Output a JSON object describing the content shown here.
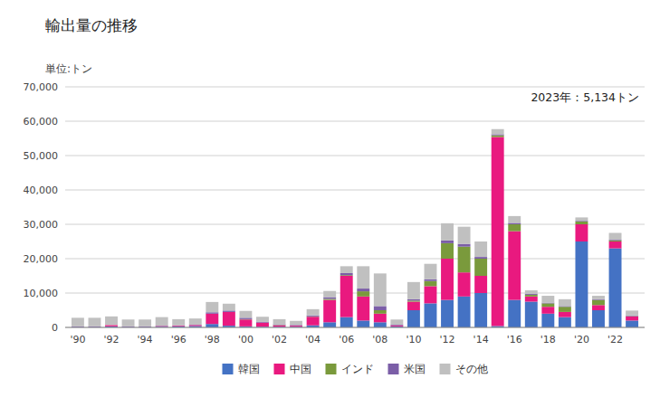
{
  "chart_data": {
    "type": "bar",
    "stacked": true,
    "title": "輸出量の推移",
    "ylabel": "単位:トン",
    "annotation": "2023年：5,134トン",
    "categories": [
      "'90",
      null,
      "'92",
      null,
      "'94",
      null,
      "'96",
      null,
      "'98",
      null,
      "'00",
      null,
      "'02",
      null,
      "'04",
      null,
      "'06",
      null,
      "'08",
      null,
      "'10",
      null,
      "'12",
      null,
      "'14",
      null,
      "'16",
      null,
      "'18",
      null,
      "'20",
      null,
      "'22",
      null
    ],
    "series": [
      {
        "name": "韓国",
        "color": "#4472c4",
        "values": [
          200,
          200,
          300,
          200,
          200,
          200,
          300,
          400,
          1000,
          500,
          300,
          200,
          200,
          200,
          600,
          1500,
          3000,
          2000,
          1500,
          300,
          5000,
          7000,
          8000,
          9000,
          10000,
          400,
          8000,
          7500,
          4000,
          3000,
          25000,
          5000,
          23000,
          2000
        ]
      },
      {
        "name": "中国",
        "color": "#e9197f",
        "values": [
          100,
          100,
          400,
          100,
          100,
          200,
          200,
          300,
          3000,
          4000,
          2000,
          1200,
          400,
          300,
          2500,
          6500,
          12000,
          7000,
          2500,
          300,
          2500,
          5000,
          12000,
          7000,
          5000,
          55000,
          20000,
          1500,
          2000,
          1500,
          5000,
          1500,
          2000,
          1200
        ]
      },
      {
        "name": "インド",
        "color": "#7a9a3c",
        "values": [
          0,
          0,
          0,
          0,
          0,
          0,
          0,
          0,
          0,
          0,
          100,
          0,
          100,
          0,
          100,
          300,
          200,
          1500,
          1000,
          0,
          300,
          1500,
          4500,
          7500,
          5000,
          500,
          2000,
          500,
          1000,
          1500,
          800,
          1500,
          300,
          100
        ]
      },
      {
        "name": "米国",
        "color": "#7b5ea7",
        "values": [
          0,
          0,
          0,
          0,
          0,
          100,
          100,
          100,
          400,
          400,
          400,
          200,
          200,
          200,
          300,
          500,
          600,
          800,
          1200,
          200,
          400,
          500,
          800,
          800,
          500,
          300,
          400,
          300,
          200,
          200,
          200,
          200,
          200,
          200
        ]
      },
      {
        "name": "その他",
        "color": "#c0c0c0",
        "values": [
          2500,
          2500,
          2500,
          2000,
          2000,
          2500,
          1800,
          1800,
          3000,
          2000,
          2000,
          1500,
          1500,
          1200,
          1800,
          1800,
          2000,
          6500,
          9500,
          1500,
          5000,
          4500,
          5000,
          5000,
          4500,
          1500,
          2000,
          1000,
          2000,
          2000,
          1000,
          1000,
          2000,
          1400
        ]
      }
    ],
    "ylim": [
      0,
      70000
    ],
    "yticks": [
      0,
      {
        "value": 10000,
        "label": "10,000"
      },
      {
        "value": 20000,
        "label": "20,000"
      },
      {
        "value": 30000,
        "label": "30,000"
      },
      {
        "value": 40000,
        "label": "40,000"
      },
      {
        "value": 50000,
        "label": "50,000"
      },
      {
        "value": 60000,
        "label": "60,000"
      },
      {
        "value": 70000,
        "label": "70,000"
      }
    ],
    "grid": true,
    "legend": "bottom"
  }
}
